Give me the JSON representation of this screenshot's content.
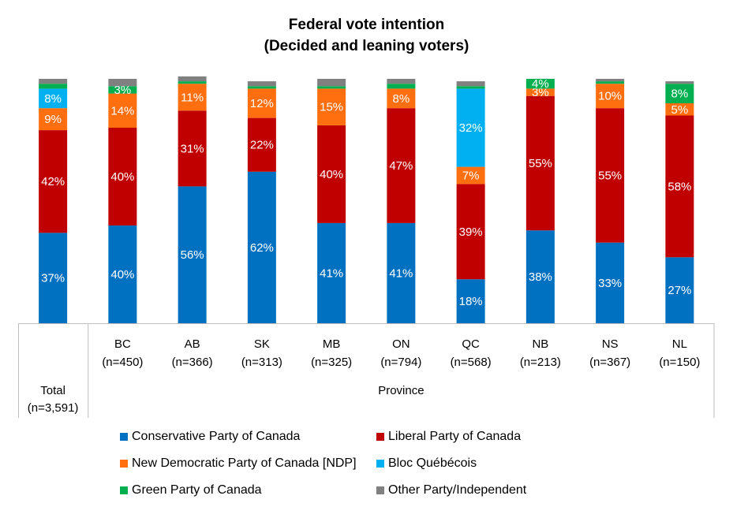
{
  "title": {
    "line1": "Federal vote intention",
    "line2": "(Decided and leaning voters)"
  },
  "chart_data": {
    "type": "bar",
    "stacked": true,
    "title": "Federal vote intention (Decided and leaning voters)",
    "categories": [
      {
        "label": "Total",
        "n": "(n=3,591)"
      },
      {
        "label": "BC",
        "n": "(n=450)"
      },
      {
        "label": "AB",
        "n": "(n=366)"
      },
      {
        "label": "SK",
        "n": "(n=313)"
      },
      {
        "label": "MB",
        "n": "(n=325)"
      },
      {
        "label": "ON",
        "n": "(n=794)"
      },
      {
        "label": "QC",
        "n": "(n=568)"
      },
      {
        "label": "NB",
        "n": "(n=213)"
      },
      {
        "label": "NS",
        "n": "(n=367)"
      },
      {
        "label": "NL",
        "n": "(n=150)"
      }
    ],
    "group_labels": {
      "total": "",
      "province": "Province"
    },
    "ylim": [
      0,
      100
    ],
    "series": [
      {
        "name": "Conservative Party of Canada",
        "color": "#0070C0",
        "values": [
          37,
          40,
          56,
          62,
          41,
          41,
          18,
          38,
          33,
          27
        ],
        "labels": [
          "37%",
          "40%",
          "56%",
          "62%",
          "41%",
          "41%",
          "18%",
          "38%",
          "33%",
          "27%"
        ]
      },
      {
        "name": "Liberal Party of Canada",
        "color": "#C00000",
        "values": [
          42,
          40,
          31,
          22,
          40,
          47,
          39,
          55,
          55,
          58
        ],
        "labels": [
          "42%",
          "40%",
          "31%",
          "22%",
          "40%",
          "47%",
          "39%",
          "55%",
          "55%",
          "58%"
        ]
      },
      {
        "name": "New Democratic Party of Canada [NDP]",
        "color": "#FF6F0F",
        "values": [
          9,
          14,
          11,
          12,
          15,
          8,
          7,
          3,
          10,
          5
        ],
        "labels": [
          "9%",
          "14%",
          "11%",
          "12%",
          "15%",
          "8%",
          "7%",
          "3%",
          "10%",
          "5%"
        ]
      },
      {
        "name": "Bloc Québécois",
        "color": "#00B0F0",
        "values": [
          8,
          0,
          0,
          0,
          0,
          0,
          32,
          0,
          0,
          0
        ],
        "labels": [
          "8%",
          "",
          "",
          "",
          "",
          "",
          "32%",
          "",
          "",
          ""
        ]
      },
      {
        "name": "Green Party of Canada",
        "color": "#00B050",
        "values": [
          2,
          3,
          1,
          1,
          1,
          2,
          1,
          4,
          1,
          8
        ],
        "labels": [
          "",
          "3%",
          "",
          "",
          "",
          "",
          "",
          "4%",
          "",
          "8%"
        ]
      },
      {
        "name": "Other Party/Independent",
        "color": "#808080",
        "values": [
          2,
          3,
          2,
          2,
          3,
          2,
          2,
          0,
          1,
          1
        ],
        "labels": [
          "",
          "",
          "",
          "",
          "",
          "",
          "",
          "",
          "",
          ""
        ]
      }
    ]
  }
}
